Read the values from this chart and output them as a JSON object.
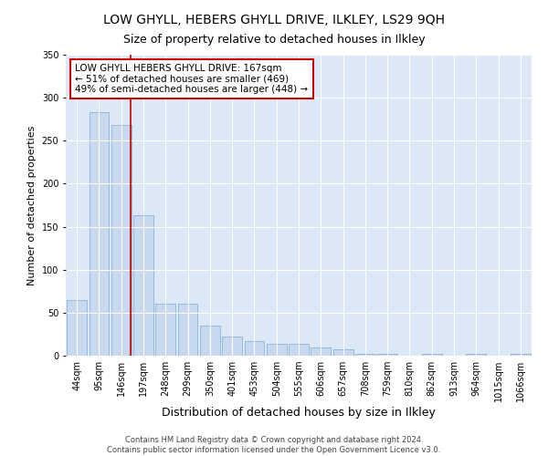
{
  "title": "LOW GHYLL, HEBERS GHYLL DRIVE, ILKLEY, LS29 9QH",
  "subtitle": "Size of property relative to detached houses in Ilkley",
  "xlabel": "Distribution of detached houses by size in Ilkley",
  "ylabel": "Number of detached properties",
  "footer_line1": "Contains HM Land Registry data © Crown copyright and database right 2024.",
  "footer_line2": "Contains public sector information licensed under the Open Government Licence v3.0.",
  "categories": [
    "44sqm",
    "95sqm",
    "146sqm",
    "197sqm",
    "248sqm",
    "299sqm",
    "350sqm",
    "401sqm",
    "453sqm",
    "504sqm",
    "555sqm",
    "606sqm",
    "657sqm",
    "708sqm",
    "759sqm",
    "810sqm",
    "862sqm",
    "913sqm",
    "964sqm",
    "1015sqm",
    "1066sqm"
  ],
  "values": [
    65,
    283,
    268,
    163,
    60,
    60,
    35,
    22,
    17,
    14,
    14,
    10,
    7,
    2,
    2,
    0,
    2,
    0,
    2,
    0,
    2
  ],
  "bar_color": "#c8d8ee",
  "bar_edge_color": "#7aaad4",
  "vline_color": "#cc0000",
  "vline_x": 2.42,
  "annotation_text": "LOW GHYLL HEBERS GHYLL DRIVE: 167sqm\n← 51% of detached houses are smaller (469)\n49% of semi-detached houses are larger (448) →",
  "annotation_box_color": "#ffffff",
  "annotation_box_edge": "#cc0000",
  "ylim": [
    0,
    350
  ],
  "yticks": [
    0,
    50,
    100,
    150,
    200,
    250,
    300,
    350
  ],
  "fig_bg_color": "#ffffff",
  "plot_bg_color": "#dce8f5",
  "title_fontsize": 10,
  "subtitle_fontsize": 9,
  "xlabel_fontsize": 9,
  "ylabel_fontsize": 8,
  "tick_fontsize": 7,
  "annotation_fontsize": 7.5,
  "footer_fontsize": 6
}
